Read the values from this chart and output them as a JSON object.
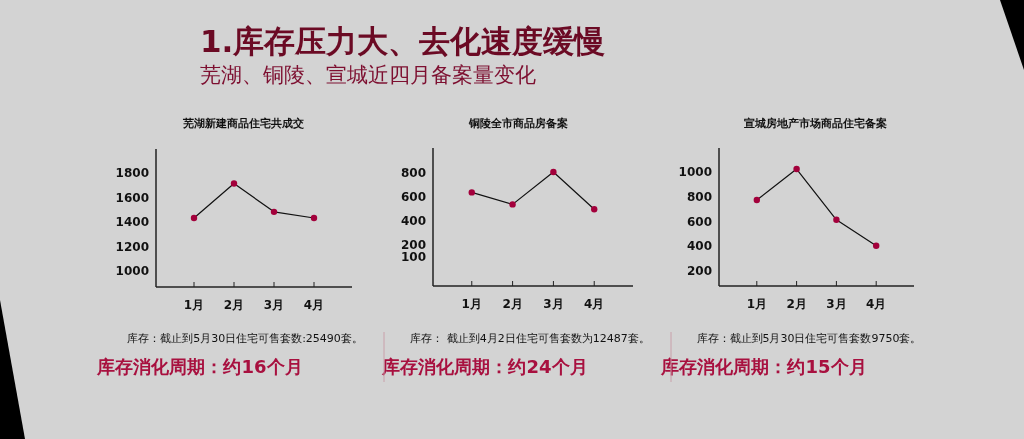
{
  "chart_data": [
    {
      "type": "line",
      "title": "芜湖新建商品住宅共成交",
      "categories": [
        "1月",
        "2月",
        "3月",
        "4月"
      ],
      "series": [
        {
          "color": "#a3003b",
          "values": [
            1430,
            1710,
            1480,
            1430
          ]
        }
      ],
      "ylim": [
        870,
        1990
      ],
      "yticks": [
        1000,
        1200,
        1400,
        1600,
        1800
      ],
      "marker": "circle",
      "annotations": [
        "1.库存压力大、去化速度缓慢",
        "芜湖、铜陵、宣城近四月备案量变化",
        "库存：截止到5月30日住宅可售套数:25490套。",
        "库存消化周期：约16个月"
      ]
    },
    {
      "type": "line",
      "title": "铜陵全市商品房备案",
      "categories": [
        "1月",
        "2月",
        "3月",
        "4月"
      ],
      "series": [
        {
          "color": "#a3003b",
          "values": [
            630,
            530,
            800,
            490
          ]
        }
      ],
      "ylim": [
        -150,
        1000
      ],
      "yticks": [
        100,
        200,
        400,
        600,
        800
      ],
      "marker": "circle",
      "annotations": [
        "库存： 截止到4月2日住宅可售套数为12487套。",
        "库存消化周期：约24个月"
      ]
    },
    {
      "type": "line",
      "title": "宣城房地产市场商品住宅备案",
      "categories": [
        "1月",
        "2月",
        "3月",
        "4月"
      ],
      "series": [
        {
          "color": "#a3003b",
          "values": [
            770,
            1020,
            610,
            400
          ]
        }
      ],
      "ylim": [
        75,
        1190
      ],
      "yticks": [
        200,
        400,
        600,
        800,
        1000
      ],
      "marker": "circle",
      "annotations": [
        "库存：截止到5月30日住宅可售套数9750套。",
        "库存消化周期：约15个月"
      ]
    }
  ]
}
